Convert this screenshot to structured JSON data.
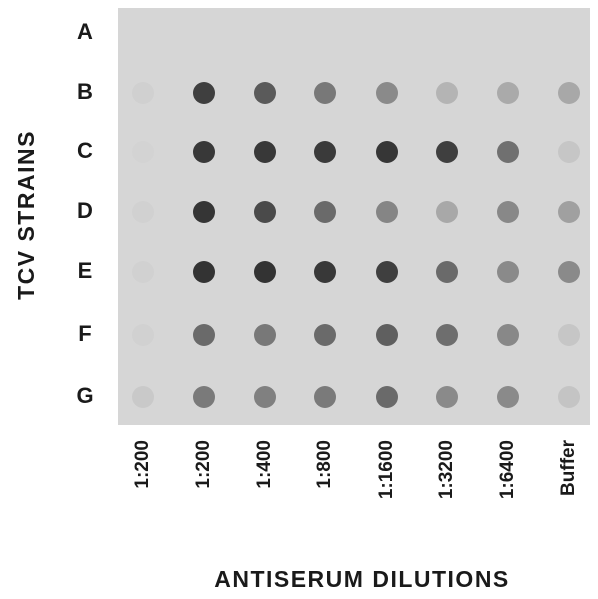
{
  "row_axis": {
    "title": "TCV STRAINS",
    "labels": [
      "A",
      "B",
      "C",
      "D",
      "E",
      "F",
      "G"
    ]
  },
  "column_axis": {
    "title": "ANTISERUM DILUTIONS",
    "labels": [
      "1:200",
      "1:200",
      "1:400",
      "1:800",
      "1:1600",
      "1:3200",
      "1:6400",
      "Buffer"
    ]
  }
}
